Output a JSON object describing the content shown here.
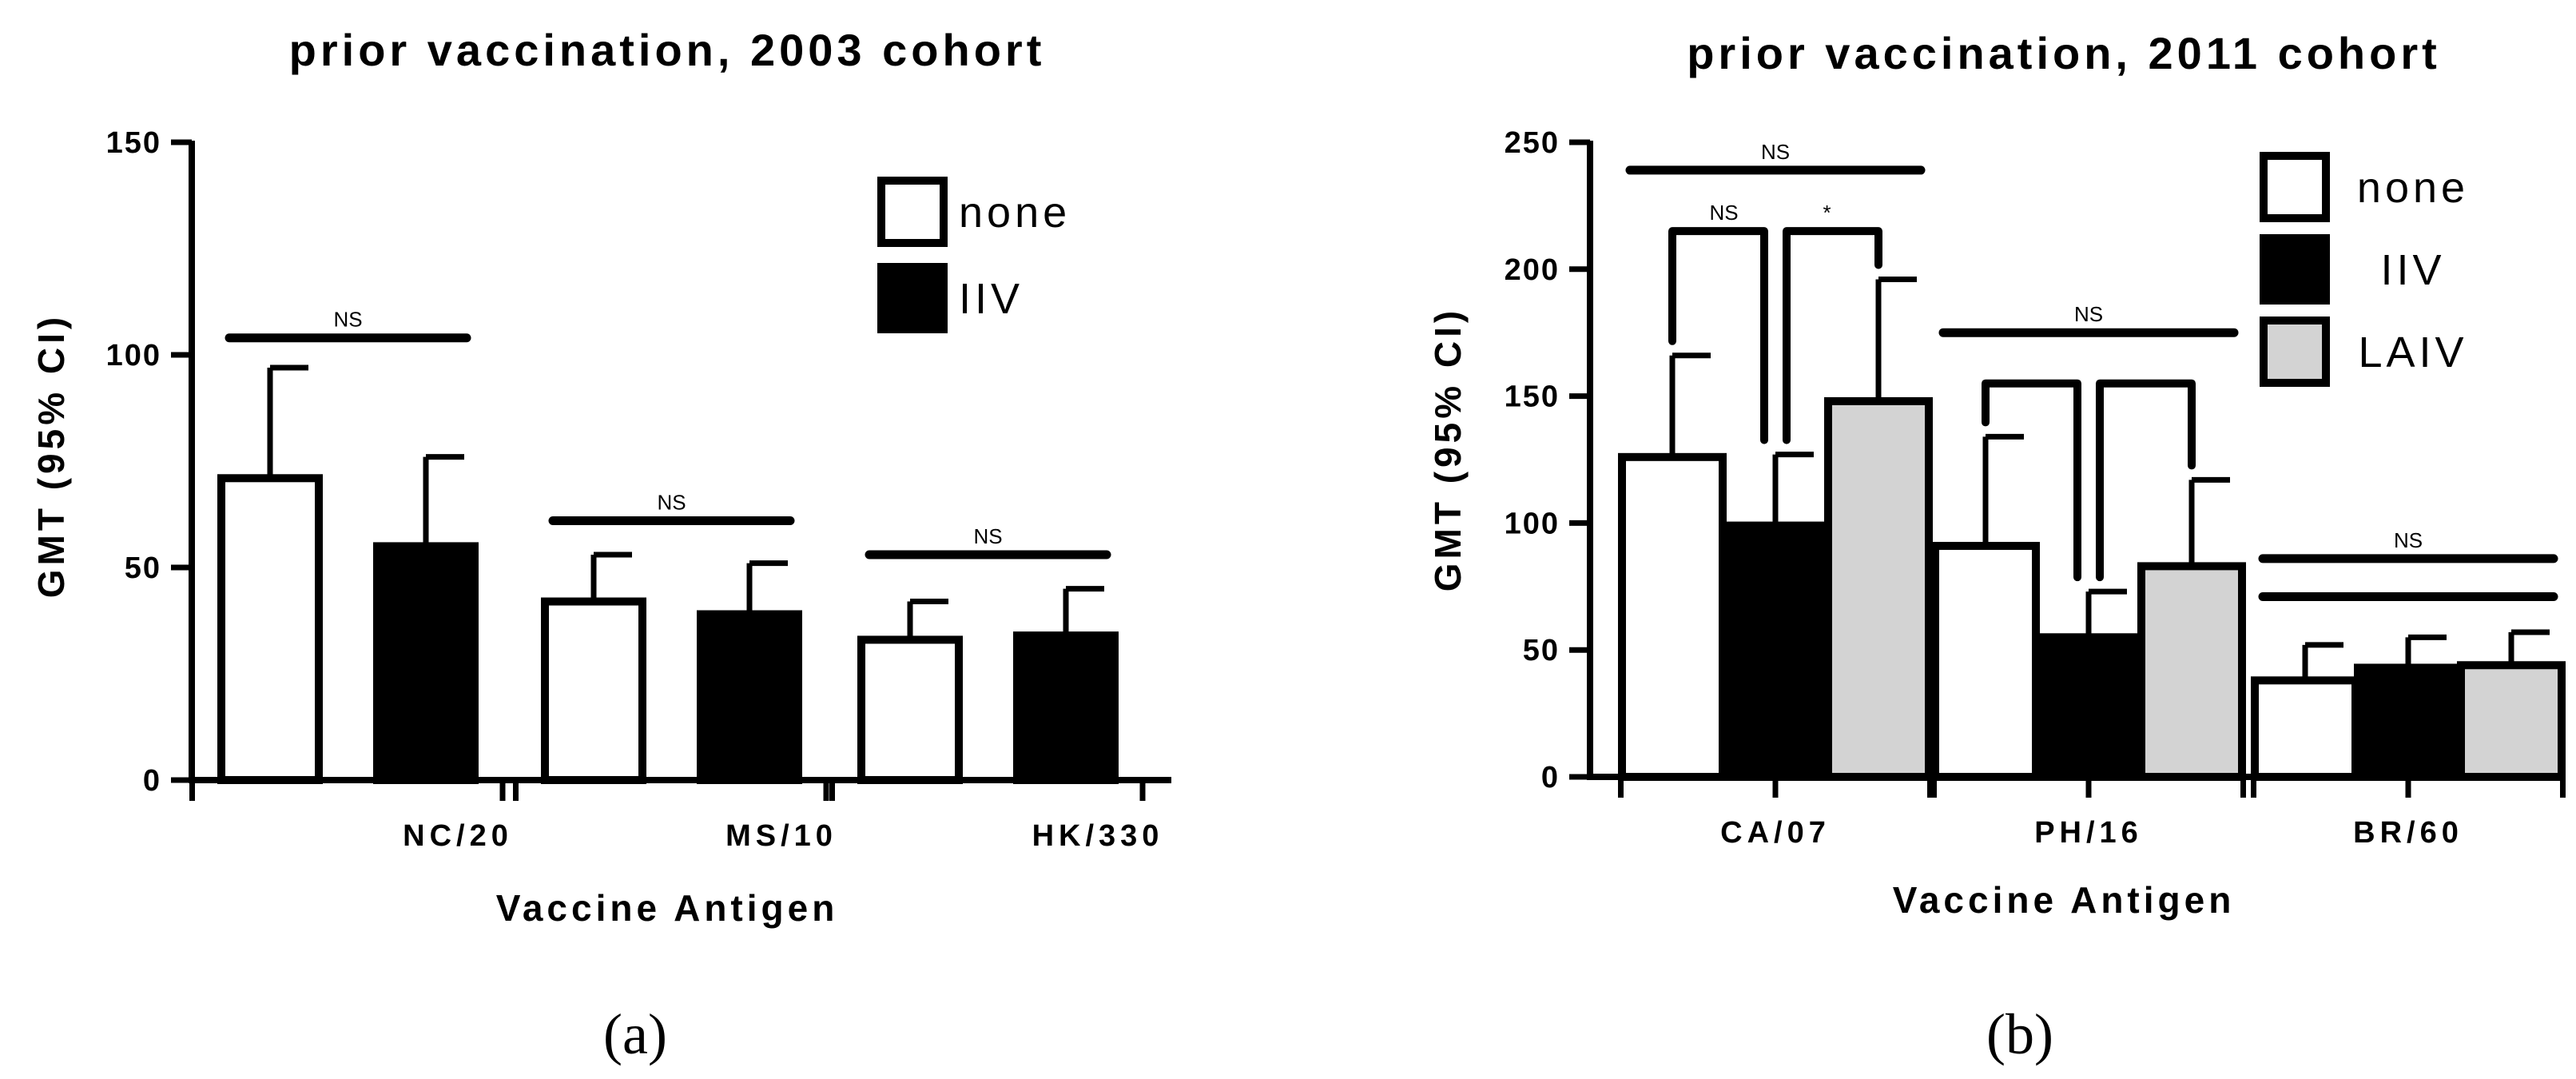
{
  "chart_data": [
    {
      "type": "bar",
      "panel_label": "(a)",
      "title": "prior vaccination, 2003 cohort",
      "xlabel": "Vaccine Antigen",
      "ylabel": "GMT (95% CI)",
      "ylim": [
        0,
        150
      ],
      "yticks": [
        0,
        50,
        100,
        150
      ],
      "categories": [
        "NC/20",
        "MS/10",
        "HK/330"
      ],
      "series": [
        {
          "name": "none",
          "color": "#ffffff",
          "values": [
            71,
            42,
            33
          ],
          "ci_upper": [
            97,
            53,
            42
          ]
        },
        {
          "name": "IIV",
          "color": "#000000",
          "values": [
            55,
            39,
            34
          ],
          "ci_upper": [
            76,
            51,
            45
          ]
        }
      ],
      "significance": [
        {
          "group": 0,
          "from": 0,
          "to": 1,
          "label": "NS",
          "y": 104
        },
        {
          "group": 1,
          "from": 0,
          "to": 1,
          "label": "NS",
          "y": 61
        },
        {
          "group": 2,
          "from": 0,
          "to": 1,
          "label": "NS",
          "y": 53
        }
      ],
      "legend_position": "top-right"
    },
    {
      "type": "bar",
      "panel_label": "(b)",
      "title": "prior vaccination, 2011 cohort",
      "xlabel": "Vaccine Antigen",
      "ylabel": "GMT (95% CI)",
      "ylim": [
        0,
        250
      ],
      "yticks": [
        0,
        50,
        100,
        150,
        200,
        250
      ],
      "categories": [
        "CA/07",
        "PH/16",
        "BR/60"
      ],
      "series": [
        {
          "name": "none",
          "color": "#ffffff",
          "values": [
            126,
            91,
            38
          ],
          "ci_upper": [
            166,
            134,
            52
          ]
        },
        {
          "name": "IIV",
          "color": "#000000",
          "values": [
            99,
            55,
            43
          ],
          "ci_upper": [
            127,
            73,
            55
          ]
        },
        {
          "name": "LAIV",
          "color": "#d3d3d3",
          "values": [
            148,
            83,
            44
          ],
          "ci_upper": [
            196,
            117,
            57
          ]
        }
      ],
      "significance": [
        {
          "group": 0,
          "from": 0,
          "to": 2,
          "label": "NS",
          "y": 239
        },
        {
          "group": 0,
          "from": 0,
          "to": 1,
          "label": "NS",
          "y": 215,
          "bracket": true
        },
        {
          "group": 0,
          "from": 1,
          "to": 2,
          "label": "*",
          "y": 215,
          "bracket": true
        },
        {
          "group": 1,
          "from": 0,
          "to": 2,
          "label": "NS",
          "y": 175
        },
        {
          "group": 1,
          "from": 0,
          "to": 1,
          "label": "",
          "y": 155,
          "bracket": true
        },
        {
          "group": 1,
          "from": 1,
          "to": 2,
          "label": "",
          "y": 155,
          "bracket": true
        },
        {
          "group": 2,
          "from": 0,
          "to": 2,
          "label": "NS",
          "y": 86
        },
        {
          "group": 2,
          "from": 0,
          "to": 1,
          "label": "",
          "y": 71
        },
        {
          "group": 2,
          "from": 1,
          "to": 2,
          "label": "",
          "y": 71
        }
      ],
      "legend_position": "top-right"
    }
  ]
}
